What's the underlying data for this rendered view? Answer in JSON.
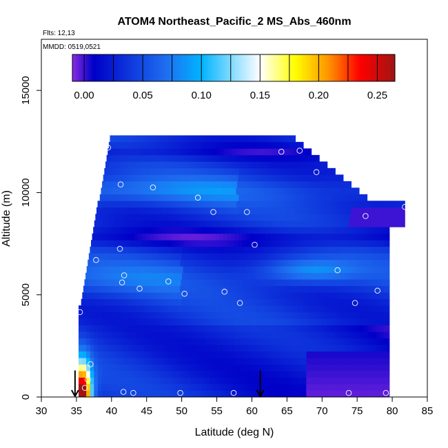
{
  "chart_data": {
    "type": "heatmap",
    "title": "ATOM4 Northeast_Pacific_2 MS_Abs_460nm",
    "flights_label": "Flts: 12,13",
    "dates_label": "MMDD: 0519,0521",
    "xlabel": "Latitude (deg N)",
    "ylabel": "Altitude (m)",
    "xlim": [
      30,
      85
    ],
    "ylim": [
      0,
      17500
    ],
    "xticks": [
      30,
      35,
      40,
      45,
      50,
      55,
      60,
      65,
      70,
      75,
      80,
      85
    ],
    "yticks": [
      0,
      5000,
      10000,
      15000
    ],
    "colorbar": {
      "range": [
        -0.01,
        0.265
      ],
      "ticks": [
        0.0,
        0.05,
        0.1,
        0.15,
        0.2,
        0.25
      ],
      "tick_labels": [
        "0.00",
        "0.05",
        "0.10",
        "0.15",
        "0.20",
        "0.25"
      ],
      "colors": [
        "#8a2be2",
        "#0000c8",
        "#1e6ef0",
        "#00b4ff",
        "#ffffff",
        "#ffff00",
        "#ff8c00",
        "#ff0000",
        "#a01414"
      ]
    },
    "arrows_lat": [
      34.8,
      61.2
    ],
    "profile_points": [
      {
        "lat": 39.5,
        "alt": 12200
      },
      {
        "lat": 64.2,
        "alt": 12000
      },
      {
        "lat": 66.8,
        "alt": 12050
      },
      {
        "lat": 69.2,
        "alt": 11000
      },
      {
        "lat": 41.3,
        "alt": 10400
      },
      {
        "lat": 45.9,
        "alt": 10250
      },
      {
        "lat": 52.3,
        "alt": 9750
      },
      {
        "lat": 54.5,
        "alt": 9050
      },
      {
        "lat": 59.3,
        "alt": 9050
      },
      {
        "lat": 76.2,
        "alt": 8850
      },
      {
        "lat": 81.8,
        "alt": 9300
      },
      {
        "lat": 41.2,
        "alt": 7250
      },
      {
        "lat": 60.4,
        "alt": 7450
      },
      {
        "lat": 37.8,
        "alt": 6700
      },
      {
        "lat": 72.2,
        "alt": 6200
      },
      {
        "lat": 41.8,
        "alt": 5950
      },
      {
        "lat": 41.5,
        "alt": 5600
      },
      {
        "lat": 48.1,
        "alt": 5650
      },
      {
        "lat": 44.0,
        "alt": 5300
      },
      {
        "lat": 50.4,
        "alt": 5050
      },
      {
        "lat": 56.1,
        "alt": 5150
      },
      {
        "lat": 58.3,
        "alt": 4600
      },
      {
        "lat": 74.7,
        "alt": 4600
      },
      {
        "lat": 77.9,
        "alt": 5200
      },
      {
        "lat": 80.2,
        "alt": 4400
      },
      {
        "lat": 35.5,
        "alt": 4150
      },
      {
        "lat": 37.0,
        "alt": 1600
      },
      {
        "lat": 36.6,
        "alt": 850
      },
      {
        "lat": 36.2,
        "alt": 450
      },
      {
        "lat": 41.7,
        "alt": 250
      },
      {
        "lat": 43.1,
        "alt": 200
      },
      {
        "lat": 49.8,
        "alt": 200
      },
      {
        "lat": 57.4,
        "alt": 200
      },
      {
        "lat": 73.8,
        "alt": 200
      },
      {
        "lat": 79.1,
        "alt": 200
      }
    ]
  }
}
